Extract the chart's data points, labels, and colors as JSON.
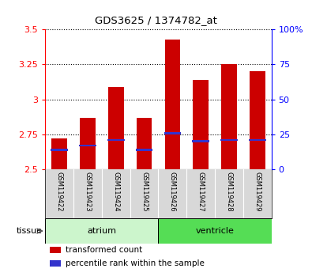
{
  "title": "GDS3625 / 1374782_at",
  "samples": [
    "GSM119422",
    "GSM119423",
    "GSM119424",
    "GSM119425",
    "GSM119426",
    "GSM119427",
    "GSM119428",
    "GSM119429"
  ],
  "transformed_count": [
    2.72,
    2.87,
    3.09,
    2.87,
    3.43,
    3.14,
    3.25,
    3.2
  ],
  "percentile_rank": [
    14,
    17,
    21,
    14,
    26,
    20,
    21,
    21
  ],
  "bar_bottom": 2.5,
  "ylim_left": [
    2.5,
    3.5
  ],
  "ylim_right": [
    0,
    100
  ],
  "yticks_left": [
    2.5,
    2.75,
    3.0,
    3.25,
    3.5
  ],
  "yticks_right": [
    0,
    25,
    50,
    75,
    100
  ],
  "bar_color": "#cc0000",
  "percentile_color": "#3333cc",
  "atrium_color": "#ccf5cc",
  "ventricle_color": "#55dd55",
  "sample_bg_color": "#d8d8d8",
  "tissue_label": "tissue",
  "atrium_label": "atrium",
  "ventricle_label": "ventricle",
  "legend_items": [
    {
      "label": "transformed count",
      "color": "#cc0000"
    },
    {
      "label": "percentile rank within the sample",
      "color": "#3333cc"
    }
  ]
}
